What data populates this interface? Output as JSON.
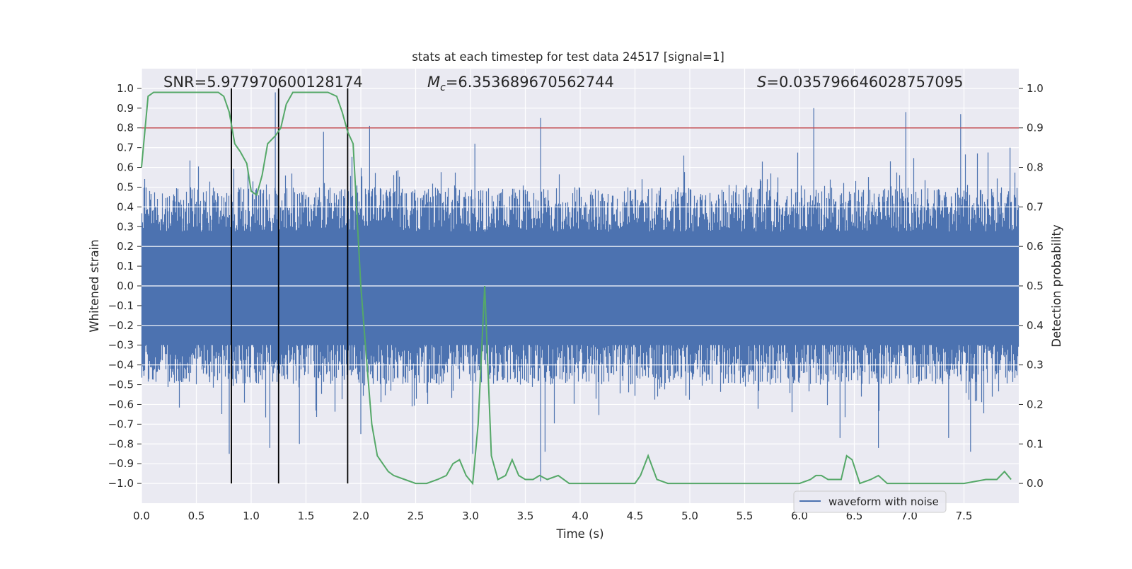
{
  "chart_data": {
    "type": "line",
    "title": "stats at each timestep for test data 24517 [signal=1]",
    "xlabel": "Time (s)",
    "ylabel": "Whitened strain",
    "ylabel_right": "Detection probability",
    "xlim": [
      0,
      8
    ],
    "ylim": [
      -1.1,
      1.1
    ],
    "ylim_right": [
      -0.05,
      1.05
    ],
    "x_ticks": [
      "0.0",
      "0.5",
      "1.0",
      "1.5",
      "2.0",
      "2.5",
      "3.0",
      "3.5",
      "4.0",
      "4.5",
      "5.0",
      "5.5",
      "6.0",
      "6.5",
      "7.0",
      "7.5"
    ],
    "y_ticks": [
      "1.0",
      "0.9",
      "0.8",
      "0.7",
      "0.6",
      "0.5",
      "0.4",
      "0.3",
      "0.2",
      "0.1",
      "0.0",
      "−0.1",
      "−0.2",
      "−0.3",
      "−0.4",
      "−0.5",
      "−0.6",
      "−0.7",
      "−0.8",
      "−0.9",
      "−1.0"
    ],
    "y_ticks_right": [
      "1.0",
      "0.9",
      "0.8",
      "0.7",
      "0.6",
      "0.5",
      "0.4",
      "0.3",
      "0.2",
      "0.1",
      "0.0"
    ],
    "grid": true,
    "legend_position": "lower-right",
    "colors": {
      "background": "#eaeaf2",
      "grid": "#ffffff",
      "waveform": "#4c72b0",
      "probability": "#55a868",
      "threshold": "#c44e52",
      "markers": "#000000"
    },
    "annotations": {
      "snr": "SNR=5.977970600128174",
      "mc_symbol": "M",
      "mc_sub": "c",
      "mc_value": "=6.353689670562744",
      "s_symbol": "S",
      "s_value": "=0.035796646028757095"
    },
    "series": [
      {
        "name": "waveform with noise",
        "axis": "left",
        "style": "dense-oscillation",
        "envelope_upper_typical": 0.5,
        "envelope_lower_typical": -0.5,
        "peaks_upper": [
          [
            0.82,
            0.98
          ],
          [
            1.22,
            0.98
          ],
          [
            1.25,
            0.98
          ],
          [
            1.66,
            0.78
          ],
          [
            2.08,
            0.81
          ],
          [
            3.04,
            0.72
          ],
          [
            3.64,
            0.85
          ],
          [
            6.13,
            0.9
          ],
          [
            6.97,
            0.88
          ],
          [
            7.47,
            0.87
          ],
          [
            7.92,
            0.7
          ]
        ],
        "peaks_lower": [
          [
            0.8,
            -0.85
          ],
          [
            1.17,
            -0.82
          ],
          [
            1.44,
            -0.8
          ],
          [
            2.0,
            -0.75
          ],
          [
            3.02,
            -0.85
          ],
          [
            3.64,
            -0.99
          ],
          [
            3.68,
            -0.84
          ],
          [
            6.37,
            -0.77
          ],
          [
            6.72,
            -0.82
          ],
          [
            7.36,
            -0.77
          ],
          [
            7.56,
            -0.84
          ]
        ]
      },
      {
        "name": "detection probability",
        "axis": "right",
        "x": [
          0.0,
          0.06,
          0.11,
          0.2,
          0.3,
          0.5,
          0.7,
          0.75,
          0.8,
          0.85,
          0.9,
          0.96,
          1.0,
          1.05,
          1.1,
          1.15,
          1.22,
          1.27,
          1.32,
          1.38,
          1.5,
          1.7,
          1.78,
          1.83,
          1.88,
          1.93,
          2.0,
          2.05,
          2.1,
          2.15,
          2.2,
          2.25,
          2.3,
          2.4,
          2.5,
          2.6,
          2.7,
          2.78,
          2.84,
          2.9,
          2.96,
          3.02,
          3.07,
          3.13,
          3.19,
          3.25,
          3.32,
          3.38,
          3.44,
          3.5,
          3.57,
          3.63,
          3.7,
          3.8,
          3.9,
          4.0,
          4.3,
          4.5,
          4.55,
          4.62,
          4.7,
          4.8,
          5.0,
          5.5,
          5.8,
          6.0,
          6.1,
          6.15,
          6.2,
          6.26,
          6.33,
          6.38,
          6.43,
          6.48,
          6.55,
          6.65,
          6.72,
          6.8,
          6.9,
          7.0,
          7.2,
          7.5,
          7.7,
          7.8,
          7.87,
          7.93
        ],
        "y": [
          0.8,
          0.98,
          0.99,
          0.99,
          0.99,
          0.99,
          0.99,
          0.98,
          0.94,
          0.86,
          0.84,
          0.81,
          0.74,
          0.73,
          0.78,
          0.86,
          0.88,
          0.9,
          0.96,
          0.99,
          0.99,
          0.99,
          0.98,
          0.94,
          0.89,
          0.86,
          0.5,
          0.32,
          0.15,
          0.07,
          0.05,
          0.03,
          0.02,
          0.01,
          0.0,
          0.0,
          0.01,
          0.02,
          0.05,
          0.06,
          0.02,
          0.0,
          0.15,
          0.5,
          0.07,
          0.01,
          0.02,
          0.06,
          0.02,
          0.01,
          0.01,
          0.02,
          0.01,
          0.02,
          0.0,
          0.0,
          0.0,
          0.0,
          0.02,
          0.07,
          0.01,
          0.0,
          0.0,
          0.0,
          0.0,
          0.0,
          0.01,
          0.02,
          0.02,
          0.01,
          0.01,
          0.01,
          0.07,
          0.06,
          0.0,
          0.01,
          0.02,
          0.0,
          0.0,
          0.0,
          0.0,
          0.0,
          0.01,
          0.01,
          0.03,
          0.01
        ]
      }
    ],
    "threshold": 0.9,
    "event_markers_x": [
      0.82,
      1.25,
      1.88
    ]
  }
}
